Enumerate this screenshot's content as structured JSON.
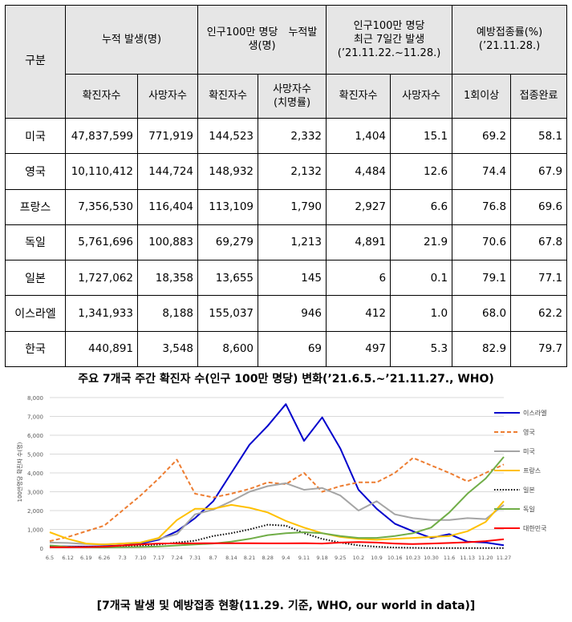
{
  "table": {
    "corner": "구분",
    "groups": [
      "누적 발생(명)",
      "인구100만 명당　누적발생(명)",
      "인구100만 명당\n최근 7일간 발생\n(’21.11.22.~11.28.)",
      "예방접종률(%)\n(’21.11.28.)"
    ],
    "subheaders": [
      "확진자수",
      "사망자수",
      "확진자수",
      "사망자수\n(치명률)",
      "확진자수",
      "사망자수",
      "1회이상",
      "접종완료"
    ],
    "rows": [
      {
        "country": "미국",
        "values": [
          "47,837,599",
          "771,919",
          "144,523",
          "2,332",
          "1,404",
          "15.1",
          "69.2",
          "58.1"
        ]
      },
      {
        "country": "영국",
        "values": [
          "10,110,412",
          "144,724",
          "148,932",
          "2,132",
          "4,484",
          "12.6",
          "74.4",
          "67.9"
        ]
      },
      {
        "country": "프랑스",
        "values": [
          "7,356,530",
          "116,404",
          "113,109",
          "1,790",
          "2,927",
          "6.6",
          "76.8",
          "69.6"
        ]
      },
      {
        "country": "독일",
        "values": [
          "5,761,696",
          "100,883",
          "69,279",
          "1,213",
          "4,891",
          "21.9",
          "70.6",
          "67.8"
        ]
      },
      {
        "country": "일본",
        "values": [
          "1,727,062",
          "18,358",
          "13,655",
          "145",
          "6",
          "0.1",
          "79.1",
          "77.1"
        ]
      },
      {
        "country": "이스라엘",
        "values": [
          "1,341,933",
          "8,188",
          "155,037",
          "946",
          "412",
          "1.0",
          "68.0",
          "62.2"
        ]
      },
      {
        "country": "한국",
        "values": [
          "440,891",
          "3,548",
          "8,600",
          "69",
          "497",
          "5.3",
          "82.9",
          "79.7"
        ]
      }
    ]
  },
  "chart_title": "주요 7개국 주간 확진자 수(인구 100만 명당) 변화(’21.6.5.~’21.11.27., WHO)",
  "footer": "[7개국 발생 및 예방접종 현황(11.29. 기준, WHO, our world in data)]",
  "chart_data": {
    "type": "line",
    "title": "주요 7개국 주간 확진자 수(인구 100만 명당) 변화(’21.6.5.~’21.11.27., WHO)",
    "ylabel": "100만명당 확진자 수(명)",
    "xlabel": "",
    "ylim": [
      0,
      8000
    ],
    "yticks": [
      0,
      1000,
      2000,
      3000,
      4000,
      5000,
      6000,
      7000,
      8000
    ],
    "ytick_labels": [
      "0",
      "1,000",
      "2,000",
      "3,000",
      "4,000",
      "5,000",
      "6,000",
      "7,000",
      "8,000"
    ],
    "x": [
      "6.5",
      "6.12",
      "6.19",
      "6.26",
      "7.3",
      "7.10",
      "7.17",
      "7.24",
      "7.31",
      "8.7",
      "8.14",
      "8.21",
      "8.28",
      "9.4",
      "9.11",
      "9.18",
      "9.25",
      "10.2",
      "10.9",
      "10.16",
      "10.23",
      "10.30",
      "11.6",
      "11.13",
      "11.20",
      "11.27"
    ],
    "legend_position": "right",
    "series": [
      {
        "name": "이스라엘",
        "color": "#0000cc",
        "dash": "solid",
        "values": [
          120,
          100,
          90,
          110,
          150,
          250,
          450,
          900,
          1600,
          2500,
          4000,
          5500,
          6500,
          7650,
          5700,
          6950,
          5300,
          3100,
          2100,
          1300,
          900,
          550,
          750,
          350,
          300,
          160
        ]
      },
      {
        "name": "영국",
        "color": "#ed7d31",
        "dash": "dash",
        "values": [
          380,
          600,
          900,
          1200,
          2000,
          2800,
          3700,
          4700,
          2900,
          2700,
          2900,
          3150,
          3500,
          3400,
          4000,
          3000,
          3300,
          3500,
          3500,
          4000,
          4800,
          4400,
          4000,
          3550,
          4000,
          4450
        ]
      },
      {
        "name": "미국",
        "color": "#a5a5a5",
        "dash": "solid",
        "values": [
          300,
          280,
          220,
          210,
          250,
          300,
          500,
          750,
          1800,
          2050,
          2500,
          3000,
          3300,
          3450,
          3100,
          3200,
          2800,
          2000,
          2500,
          1800,
          1600,
          1500,
          1500,
          1600,
          1550,
          2300
        ]
      },
      {
        "name": "프랑스",
        "color": "#ffc000",
        "dash": "solid",
        "values": [
          850,
          500,
          250,
          200,
          250,
          300,
          550,
          1500,
          2100,
          2100,
          2300,
          2150,
          1900,
          1450,
          1100,
          800,
          600,
          500,
          450,
          500,
          550,
          600,
          650,
          900,
          1400,
          2500
        ]
      },
      {
        "name": "일본",
        "color": "#000000",
        "dash": "dot",
        "values": [
          100,
          80,
          70,
          80,
          100,
          150,
          200,
          300,
          400,
          650,
          800,
          1000,
          1250,
          1200,
          800,
          500,
          300,
          150,
          80,
          40,
          20,
          10,
          10,
          10,
          10,
          10
        ]
      },
      {
        "name": "독일",
        "color": "#70ad47",
        "dash": "solid",
        "values": [
          150,
          80,
          50,
          40,
          50,
          70,
          100,
          150,
          200,
          250,
          350,
          500,
          700,
          800,
          850,
          800,
          650,
          550,
          550,
          650,
          800,
          1100,
          1900,
          2900,
          3700,
          4850
        ]
      },
      {
        "name": "대한민국",
        "color": "#ff0000",
        "dash": "solid",
        "values": [
          50,
          50,
          60,
          80,
          150,
          200,
          250,
          260,
          260,
          270,
          270,
          270,
          260,
          260,
          270,
          250,
          300,
          330,
          300,
          250,
          220,
          250,
          280,
          320,
          380,
          480
        ]
      }
    ]
  }
}
